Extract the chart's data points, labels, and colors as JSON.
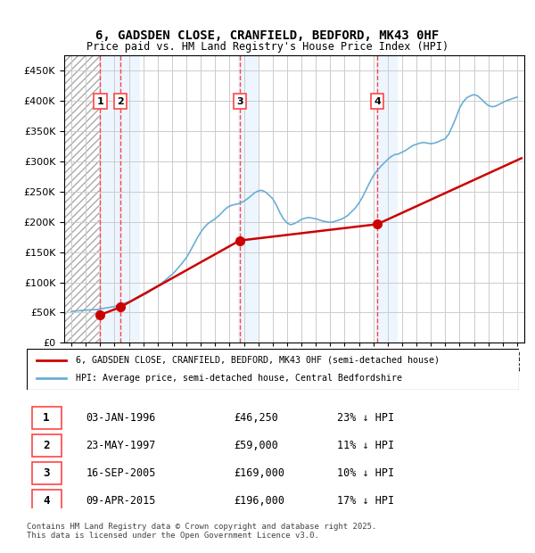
{
  "title_line1": "6, GADSDEN CLOSE, CRANFIELD, BEDFORD, MK43 0HF",
  "title_line2": "Price paid vs. HM Land Registry's House Price Index (HPI)",
  "legend_line1": "6, GADSDEN CLOSE, CRANFIELD, BEDFORD, MK43 0HF (semi-detached house)",
  "legend_line2": "HPI: Average price, semi-detached house, Central Bedfordshire",
  "footer": "Contains HM Land Registry data © Crown copyright and database right 2025.\nThis data is licensed under the Open Government Licence v3.0.",
  "transactions": [
    {
      "num": 1,
      "date": "03-JAN-1996",
      "price": 46250,
      "hpi_diff": "23% ↓ HPI",
      "x_year": 1996.01
    },
    {
      "num": 2,
      "date": "23-MAY-1997",
      "price": 59000,
      "hpi_diff": "11% ↓ HPI",
      "x_year": 1997.4
    },
    {
      "num": 3,
      "date": "16-SEP-2005",
      "price": 169000,
      "hpi_diff": "10% ↓ HPI",
      "x_year": 2005.7
    },
    {
      "num": 4,
      "date": "09-APR-2015",
      "price": 196000,
      "hpi_diff": "17% ↓ HPI",
      "x_year": 2015.27
    }
  ],
  "hpi_color": "#6baed6",
  "price_color": "#cc0000",
  "vline_color": "#ff4444",
  "highlight_color": "#ddeeff",
  "hatch_color": "#cccccc",
  "ylim": [
    0,
    475000
  ],
  "yticks": [
    0,
    50000,
    100000,
    150000,
    200000,
    250000,
    300000,
    350000,
    400000,
    450000
  ],
  "xlim_start": 1993.5,
  "xlim_end": 2025.5,
  "background_color": "#ffffff",
  "hpi_data_x": [
    1994,
    1994.25,
    1994.5,
    1994.75,
    1995,
    1995.25,
    1995.5,
    1995.75,
    1996,
    1996.25,
    1996.5,
    1996.75,
    1997,
    1997.25,
    1997.5,
    1997.75,
    1998,
    1998.25,
    1998.5,
    1998.75,
    1999,
    1999.25,
    1999.5,
    1999.75,
    2000,
    2000.25,
    2000.5,
    2000.75,
    2001,
    2001.25,
    2001.5,
    2001.75,
    2002,
    2002.25,
    2002.5,
    2002.75,
    2003,
    2003.25,
    2003.5,
    2003.75,
    2004,
    2004.25,
    2004.5,
    2004.75,
    2005,
    2005.25,
    2005.5,
    2005.75,
    2006,
    2006.25,
    2006.5,
    2006.75,
    2007,
    2007.25,
    2007.5,
    2007.75,
    2008,
    2008.25,
    2008.5,
    2008.75,
    2009,
    2009.25,
    2009.5,
    2009.75,
    2010,
    2010.25,
    2010.5,
    2010.75,
    2011,
    2011.25,
    2011.5,
    2011.75,
    2012,
    2012.25,
    2012.5,
    2012.75,
    2013,
    2013.25,
    2013.5,
    2013.75,
    2014,
    2014.25,
    2014.5,
    2014.75,
    2015,
    2015.25,
    2015.5,
    2015.75,
    2016,
    2016.25,
    2016.5,
    2016.75,
    2017,
    2017.25,
    2017.5,
    2017.75,
    2018,
    2018.25,
    2018.5,
    2018.75,
    2019,
    2019.25,
    2019.5,
    2019.75,
    2020,
    2020.25,
    2020.5,
    2020.75,
    2021,
    2021.25,
    2021.5,
    2021.75,
    2022,
    2022.25,
    2022.5,
    2022.75,
    2023,
    2023.25,
    2023.5,
    2023.75,
    2024,
    2024.25,
    2024.5,
    2024.75,
    2025
  ],
  "hpi_data_y": [
    52000,
    52500,
    53000,
    53500,
    54000,
    54500,
    54800,
    55000,
    56000,
    57000,
    58000,
    59000,
    60000,
    62000,
    64000,
    66000,
    68000,
    70000,
    73000,
    76000,
    79000,
    82000,
    86000,
    90000,
    94000,
    98000,
    103000,
    108000,
    113000,
    119000,
    126000,
    133000,
    141000,
    151000,
    162000,
    173000,
    183000,
    191000,
    197000,
    201000,
    205000,
    210000,
    216000,
    222000,
    226000,
    228000,
    229000,
    231000,
    234000,
    238000,
    243000,
    248000,
    251000,
    252000,
    249000,
    244000,
    238000,
    228000,
    215000,
    205000,
    198000,
    195000,
    197000,
    200000,
    204000,
    206000,
    207000,
    206000,
    205000,
    203000,
    201000,
    200000,
    199000,
    200000,
    202000,
    204000,
    207000,
    211000,
    217000,
    223000,
    231000,
    241000,
    253000,
    265000,
    276000,
    284000,
    291000,
    297000,
    303000,
    308000,
    311000,
    312000,
    315000,
    318000,
    322000,
    326000,
    328000,
    330000,
    331000,
    330000,
    329000,
    330000,
    332000,
    335000,
    337000,
    345000,
    358000,
    372000,
    388000,
    398000,
    405000,
    408000,
    410000,
    408000,
    403000,
    397000,
    392000,
    390000,
    391000,
    394000,
    397000,
    400000,
    402000,
    404000,
    406000
  ],
  "price_data_x": [
    1996.01,
    1997.4,
    2005.7,
    2015.27,
    2025.3
  ],
  "price_data_y": [
    46250,
    59000,
    169000,
    196000,
    305000
  ]
}
